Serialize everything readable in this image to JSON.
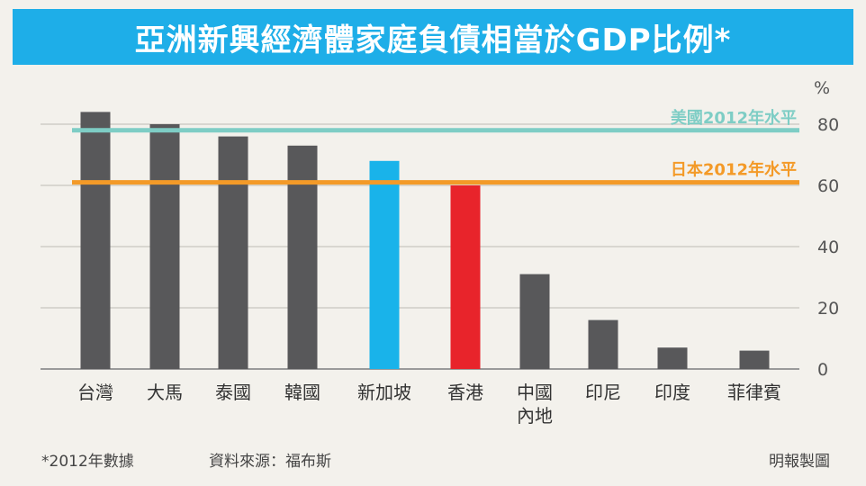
{
  "chart_data": {
    "type": "bar",
    "title": "亞洲新興經濟體家庭負債相當於GDP比例*",
    "unit": "%",
    "categories": [
      "台灣",
      "大馬",
      "泰國",
      "韓國",
      "新加坡",
      "香港",
      "中國\n內地",
      "印尼",
      "印度",
      "菲律賓"
    ],
    "values": [
      84,
      80,
      76,
      73,
      68,
      60,
      31,
      16,
      7,
      6
    ],
    "ylim": [
      0,
      80
    ],
    "yticks": [
      0,
      20,
      40,
      60,
      80
    ],
    "reference_lines": [
      {
        "label": "美國2012年水平",
        "value": 78,
        "color": "#7ecdc5"
      },
      {
        "label": "日本2012年水平",
        "value": 61,
        "color": "#f39a28"
      }
    ],
    "bar_colors": [
      "#58585a",
      "#58585a",
      "#58585a",
      "#58585a",
      "#19b3ea",
      "#e8242b",
      "#58585a",
      "#58585a",
      "#58585a",
      "#58585a"
    ],
    "grid": true
  },
  "footer": {
    "note": "*2012年數據",
    "source": "資料來源：福布斯",
    "credit": "明報製圖"
  }
}
